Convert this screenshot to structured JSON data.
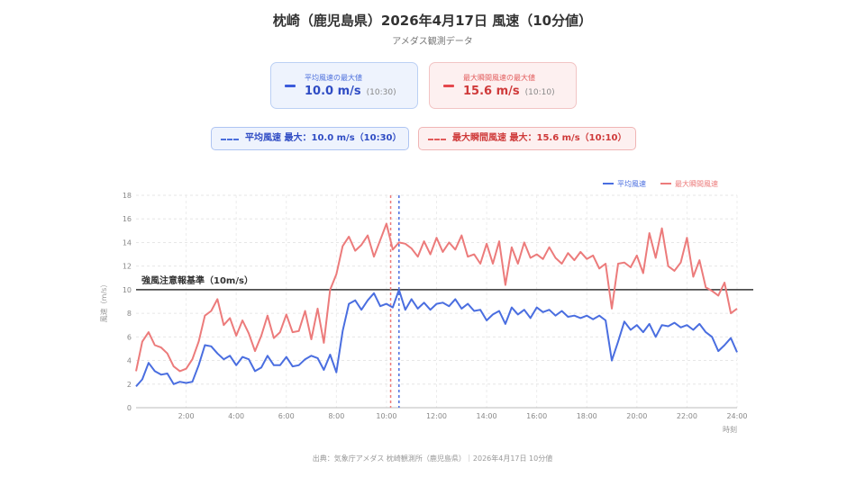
{
  "title": "枕崎（鹿児島県）2026年4月17日 風速（10分値）",
  "subtitle": "アメダス観測データ",
  "cards": {
    "avg": {
      "label": "平均風速の最大値",
      "value": "10.0 m/s",
      "time": "(10:30)"
    },
    "gust": {
      "label": "最大瞬間風速の最大値",
      "value": "15.6 m/s",
      "time": "(10:10)"
    }
  },
  "pills": {
    "avg": "平均風速 最大：10.0 m/s（10:30）",
    "gust": "最大瞬間風速 最大：15.6 m/s（10:10）"
  },
  "source": "出典：気象庁アメダス 枕崎観測所（鹿児島県）｜2026年4月17日 10分値",
  "colors": {
    "avg": "#4a6ee0",
    "gust": "#ec7b7b",
    "threshold": "#333333"
  },
  "chart_data": {
    "type": "line",
    "x_unit": "hours",
    "xlabel": "時刻",
    "ylabel": "風速（m/s）",
    "ylim": [
      0,
      18
    ],
    "xlim": [
      0,
      24
    ],
    "yticks": [
      0,
      2,
      4,
      6,
      8,
      10,
      12,
      14,
      16,
      18
    ],
    "xticks": [
      2,
      4,
      6,
      8,
      10,
      12,
      14,
      16,
      18,
      20,
      22,
      24
    ],
    "xtick_labels": [
      "2:00",
      "4:00",
      "6:00",
      "8:00",
      "10:00",
      "12:00",
      "14:00",
      "16:00",
      "18:00",
      "20:00",
      "22:00",
      "24:00"
    ],
    "grid": true,
    "legend_position": "top-right",
    "threshold": {
      "value": 10,
      "label": "強風注意報基準（10m/s）"
    },
    "max_markers": [
      {
        "series": "平均風速",
        "x": 10.5
      },
      {
        "series": "最大瞬間風速",
        "x": 10.1667
      }
    ],
    "series": [
      {
        "name": "平均風速",
        "x": [
          0,
          0.25,
          0.5,
          0.75,
          1.0,
          1.25,
          1.5,
          1.75,
          2.0,
          2.25,
          2.5,
          2.75,
          3.0,
          3.25,
          3.5,
          3.75,
          4.0,
          4.25,
          4.5,
          4.75,
          5.0,
          5.25,
          5.5,
          5.75,
          6.0,
          6.25,
          6.5,
          6.75,
          7.0,
          7.25,
          7.5,
          7.75,
          8.0,
          8.25,
          8.5,
          8.75,
          9.0,
          9.25,
          9.5,
          9.75,
          10.0,
          10.25,
          10.5,
          10.75,
          11.0,
          11.25,
          11.5,
          11.75,
          12.0,
          12.25,
          12.5,
          12.75,
          13.0,
          13.25,
          13.5,
          13.75,
          14.0,
          14.25,
          14.5,
          14.75,
          15.0,
          15.25,
          15.5,
          15.75,
          16.0,
          16.25,
          16.5,
          16.75,
          17.0,
          17.25,
          17.5,
          17.75,
          18.0,
          18.25,
          18.5,
          18.75,
          19.0,
          19.25,
          19.5,
          19.75,
          20.0,
          20.25,
          20.5,
          20.75,
          21.0,
          21.25,
          21.5,
          21.75,
          22.0,
          22.25,
          22.5,
          22.75,
          23.0,
          23.25,
          23.5,
          23.75,
          24.0
        ],
        "values": [
          1.8,
          2.4,
          3.8,
          3.1,
          2.8,
          2.9,
          2.0,
          2.2,
          2.1,
          2.2,
          3.6,
          5.3,
          5.2,
          4.6,
          4.1,
          4.4,
          3.6,
          4.3,
          4.1,
          3.1,
          3.4,
          4.4,
          3.6,
          3.6,
          4.3,
          3.5,
          3.6,
          4.1,
          4.4,
          4.2,
          3.2,
          4.5,
          3.0,
          6.5,
          8.8,
          9.1,
          8.3,
          9.1,
          9.7,
          8.6,
          8.8,
          8.5,
          10.0,
          8.3,
          9.2,
          8.4,
          8.9,
          8.3,
          8.8,
          8.9,
          8.6,
          9.2,
          8.4,
          8.8,
          8.2,
          8.3,
          7.4,
          7.9,
          8.2,
          7.1,
          8.5,
          7.9,
          8.3,
          7.6,
          8.5,
          8.1,
          8.3,
          7.8,
          8.2,
          7.7,
          7.8,
          7.6,
          7.8,
          7.5,
          7.8,
          7.4,
          4.0,
          5.6,
          7.3,
          6.6,
          7.0,
          6.4,
          7.1,
          6.0,
          7.0,
          6.9,
          7.2,
          6.8,
          7.0,
          6.6,
          7.1,
          6.4,
          6.0,
          4.8,
          5.3,
          5.9,
          4.7
        ]
      },
      {
        "name": "最大瞬間風速",
        "x": [
          0,
          0.25,
          0.5,
          0.75,
          1.0,
          1.25,
          1.5,
          1.75,
          2.0,
          2.25,
          2.5,
          2.75,
          3.0,
          3.25,
          3.5,
          3.75,
          4.0,
          4.25,
          4.5,
          4.75,
          5.0,
          5.25,
          5.5,
          5.75,
          6.0,
          6.25,
          6.5,
          6.75,
          7.0,
          7.25,
          7.5,
          7.75,
          8.0,
          8.25,
          8.5,
          8.75,
          9.0,
          9.25,
          9.5,
          9.75,
          10.0,
          10.25,
          10.5,
          10.75,
          11.0,
          11.25,
          11.5,
          11.75,
          12.0,
          12.25,
          12.5,
          12.75,
          13.0,
          13.25,
          13.5,
          13.75,
          14.0,
          14.25,
          14.5,
          14.75,
          15.0,
          15.25,
          15.5,
          15.75,
          16.0,
          16.25,
          16.5,
          16.75,
          17.0,
          17.25,
          17.5,
          17.75,
          18.0,
          18.25,
          18.5,
          18.75,
          19.0,
          19.25,
          19.5,
          19.75,
          20.0,
          20.25,
          20.5,
          20.75,
          21.0,
          21.25,
          21.5,
          21.75,
          22.0,
          22.25,
          22.5,
          22.75,
          23.0,
          23.25,
          23.5,
          23.75,
          24.0
        ],
        "values": [
          3.1,
          5.6,
          6.4,
          5.3,
          5.1,
          4.6,
          3.5,
          3.1,
          3.3,
          4.1,
          5.6,
          7.8,
          8.2,
          9.2,
          7.0,
          7.6,
          6.1,
          7.4,
          6.3,
          4.8,
          6.1,
          7.8,
          5.9,
          6.4,
          7.9,
          6.4,
          6.5,
          8.2,
          5.8,
          8.4,
          5.5,
          10.0,
          11.3,
          13.7,
          14.5,
          13.3,
          13.8,
          14.6,
          12.8,
          14.2,
          15.6,
          13.4,
          14.0,
          13.9,
          13.5,
          12.8,
          14.1,
          13.0,
          14.4,
          13.2,
          14.0,
          13.4,
          14.6,
          12.8,
          13.0,
          12.2,
          13.9,
          12.2,
          14.1,
          10.4,
          13.6,
          12.2,
          14.0,
          12.7,
          13.0,
          12.6,
          13.6,
          12.7,
          12.2,
          13.1,
          12.5,
          13.2,
          12.6,
          12.9,
          11.8,
          12.2,
          8.4,
          12.2,
          12.3,
          11.9,
          12.9,
          11.4,
          14.8,
          12.7,
          15.2,
          12.0,
          11.6,
          12.3,
          14.4,
          11.1,
          12.5,
          10.2,
          9.9,
          9.5,
          10.6,
          8.0,
          8.4
        ]
      }
    ]
  }
}
